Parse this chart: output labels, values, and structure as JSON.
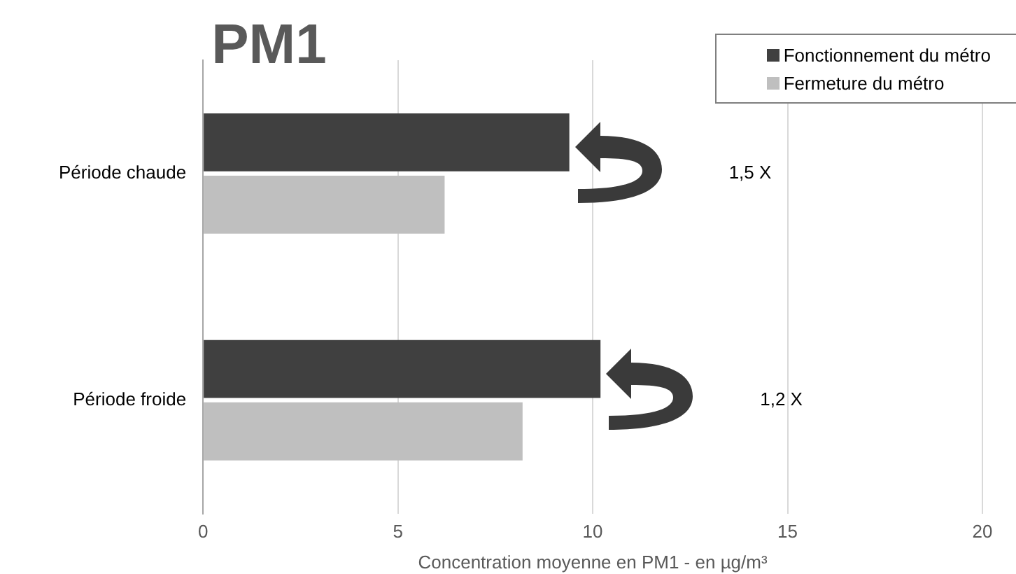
{
  "chart_data": {
    "type": "bar",
    "orientation": "horizontal",
    "title": "PM1",
    "xlabel": "Concentration moyenne en PM1 - en µg/m³",
    "categories": [
      "Période chaude",
      "Période froide"
    ],
    "series": [
      {
        "name": "Fonctionnement du métro",
        "color": "#404040",
        "values": [
          9.4,
          10.2
        ]
      },
      {
        "name": "Fermeture du métro",
        "color": "#bfbfbf",
        "values": [
          6.2,
          8.2
        ]
      }
    ],
    "xlim": [
      0,
      20
    ],
    "xticks": [
      0,
      5,
      10,
      15,
      20
    ],
    "grid": "x",
    "legend": "top right",
    "annotations": [
      "1,5 X",
      "1,2 X"
    ]
  }
}
